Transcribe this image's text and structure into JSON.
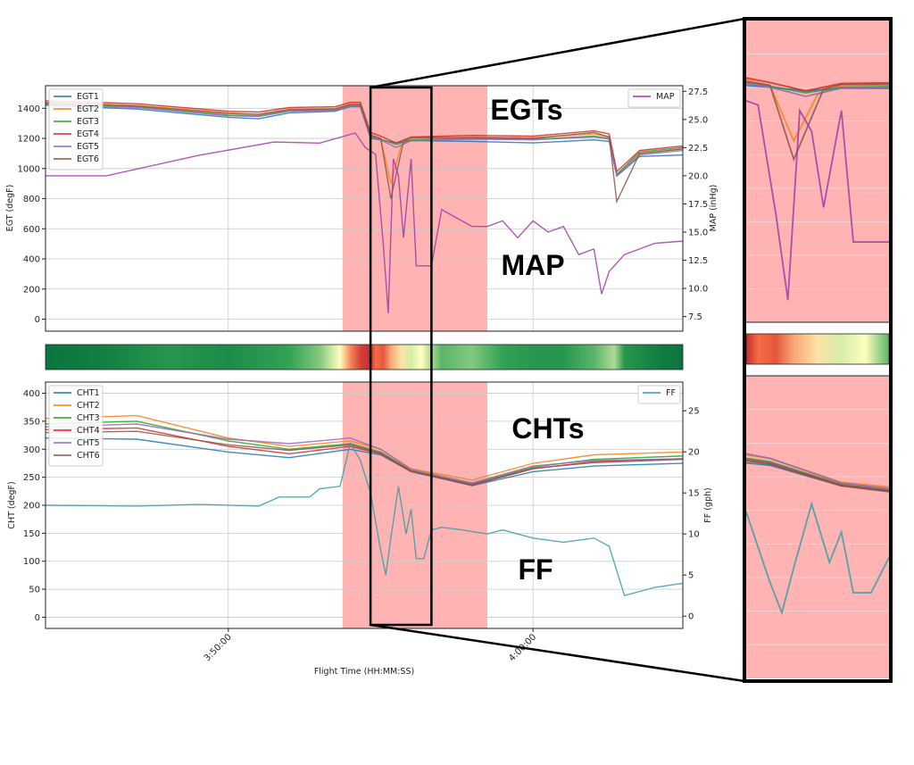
{
  "chart_data": [
    {
      "type": "line",
      "panel": "top",
      "xlabel": "",
      "ylabel": "EGT (degF)",
      "y2label": "MAP (inHg)",
      "ylim": [
        -80,
        1550
      ],
      "y2lim": [
        6.2,
        28.0
      ],
      "yticks": [
        "0",
        "200",
        "400",
        "600",
        "800",
        "1000",
        "1200",
        "1400"
      ],
      "y2ticks": [
        "7.5",
        "10.0",
        "12.5",
        "15.0",
        "17.5",
        "20.0",
        "22.5",
        "25.0",
        "27.5"
      ],
      "xlim": [
        "3:44:00",
        "4:04:55"
      ],
      "annotations": [
        "EGTs",
        "MAP"
      ],
      "grid": true,
      "legend_left": "top-left",
      "legend_right": "top-right",
      "series": [
        {
          "name": "EGT1",
          "axis": "left",
          "color": "#1f77b4",
          "x": [
            "3:44:00",
            "3:47:00",
            "3:50:00",
            "3:51:00",
            "3:52:00",
            "3:53:30",
            "3:54:00",
            "3:54:20",
            "3:54:40",
            "3:55:00",
            "3:55:30",
            "3:56:00",
            "3:58:00",
            "4:00:00",
            "4:02:00",
            "4:02:30",
            "4:02:45",
            "4:03:30",
            "4:04:55"
          ],
          "values": [
            1420,
            1395,
            1340,
            1330,
            1370,
            1380,
            1410,
            1410,
            1200,
            1190,
            1170,
            1185,
            1180,
            1170,
            1190,
            1180,
            950,
            1080,
            1090
          ]
        },
        {
          "name": "EGT2",
          "axis": "left",
          "color": "#ff7f0e",
          "x": [
            "3:44:00",
            "3:47:00",
            "3:50:00",
            "3:51:00",
            "3:52:00",
            "3:53:30",
            "3:54:00",
            "3:54:20",
            "3:54:40",
            "3:55:00",
            "3:55:20",
            "3:55:40",
            "3:56:00",
            "3:58:00",
            "4:00:00",
            "4:02:00",
            "4:02:30",
            "4:02:45",
            "4:03:30",
            "4:04:55"
          ],
          "values": [
            1440,
            1420,
            1370,
            1360,
            1395,
            1400,
            1430,
            1430,
            1230,
            1200,
            900,
            1150,
            1200,
            1210,
            1205,
            1230,
            1210,
            960,
            1100,
            1130
          ]
        },
        {
          "name": "EGT3",
          "axis": "left",
          "color": "#2ca02c",
          "x": [
            "3:44:00",
            "3:47:00",
            "3:50:00",
            "3:51:00",
            "3:52:00",
            "3:53:30",
            "3:54:00",
            "3:54:20",
            "3:54:40",
            "3:55:00",
            "3:55:30",
            "3:56:00",
            "3:58:00",
            "4:00:00",
            "4:02:00",
            "4:02:30",
            "4:02:45",
            "4:03:30",
            "4:04:55"
          ],
          "values": [
            1430,
            1410,
            1355,
            1350,
            1385,
            1390,
            1420,
            1420,
            1215,
            1195,
            1160,
            1190,
            1200,
            1195,
            1215,
            1200,
            960,
            1110,
            1140
          ]
        },
        {
          "name": "EGT4",
          "axis": "left",
          "color": "#d62728",
          "x": [
            "3:44:00",
            "3:47:00",
            "3:50:00",
            "3:51:00",
            "3:52:00",
            "3:53:30",
            "3:54:00",
            "3:54:20",
            "3:54:40",
            "3:55:00",
            "3:55:30",
            "3:56:00",
            "3:58:00",
            "4:00:00",
            "4:02:00",
            "4:02:30",
            "4:02:45",
            "4:03:30",
            "4:04:55"
          ],
          "values": [
            1450,
            1430,
            1380,
            1375,
            1405,
            1410,
            1440,
            1440,
            1240,
            1215,
            1170,
            1210,
            1220,
            1215,
            1250,
            1230,
            980,
            1120,
            1150
          ]
        },
        {
          "name": "EGT5",
          "axis": "left",
          "color": "#9467bd",
          "x": [
            "3:44:00",
            "3:47:00",
            "3:50:00",
            "3:51:00",
            "3:52:00",
            "3:53:30",
            "3:54:00",
            "3:54:20",
            "3:54:40",
            "3:55:00",
            "3:55:30",
            "3:56:00",
            "3:58:00",
            "4:00:00",
            "4:02:00",
            "4:02:30",
            "4:02:45",
            "4:03:30",
            "4:04:55"
          ],
          "values": [
            1425,
            1405,
            1350,
            1345,
            1380,
            1385,
            1415,
            1415,
            1210,
            1190,
            1140,
            1185,
            1195,
            1190,
            1210,
            1195,
            950,
            1090,
            1120
          ]
        },
        {
          "name": "EGT6",
          "axis": "left",
          "color": "#8c564b",
          "x": [
            "3:44:00",
            "3:47:00",
            "3:50:00",
            "3:51:00",
            "3:52:00",
            "3:53:30",
            "3:54:00",
            "3:54:20",
            "3:54:40",
            "3:55:00",
            "3:55:20",
            "3:55:45",
            "3:56:00",
            "3:58:00",
            "4:00:00",
            "4:02:00",
            "4:02:30",
            "4:02:45",
            "4:03:30",
            "4:04:55"
          ],
          "values": [
            1435,
            1415,
            1365,
            1360,
            1390,
            1395,
            1425,
            1425,
            1220,
            1200,
            800,
            1180,
            1205,
            1205,
            1200,
            1240,
            1210,
            780,
            1100,
            1130
          ]
        },
        {
          "name": "MAP",
          "axis": "right",
          "color": "#a03ca8",
          "x": [
            "3:44:00",
            "3:46:00",
            "3:49:00",
            "3:51:30",
            "3:53:00",
            "3:54:10",
            "3:54:30",
            "3:54:50",
            "3:55:05",
            "3:55:15",
            "3:55:25",
            "3:55:35",
            "3:55:45",
            "3:56:00",
            "3:56:10",
            "3:56:40",
            "3:57:00",
            "3:57:20",
            "3:58:00",
            "3:58:30",
            "3:59:00",
            "3:59:30",
            "4:00:00",
            "4:00:30",
            "4:01:00",
            "4:01:30",
            "4:02:00",
            "4:02:15",
            "4:02:30",
            "4:03:00",
            "4:03:30",
            "4:04:00",
            "4:04:55"
          ],
          "values": [
            20.0,
            20.0,
            21.8,
            23.0,
            22.9,
            23.8,
            22.5,
            21.9,
            14.0,
            7.8,
            21.5,
            20.0,
            14.5,
            21.5,
            12.0,
            12.0,
            17.0,
            16.5,
            15.5,
            15.5,
            16.0,
            14.5,
            16.0,
            15.0,
            15.5,
            13.0,
            13.5,
            9.5,
            11.5,
            13.0,
            13.5,
            14.0,
            14.2
          ]
        }
      ]
    },
    {
      "type": "heatmap",
      "panel": "middle",
      "colormap": "RdYlGn_r",
      "xlim": [
        "3:44:00",
        "4:04:55"
      ],
      "x": [
        "3:44:00",
        "3:46:00",
        "3:48:00",
        "3:50:00",
        "3:52:00",
        "3:53:00",
        "3:53:40",
        "3:54:00",
        "3:54:20",
        "3:54:40",
        "3:54:50",
        "3:55:05",
        "3:55:20",
        "3:55:40",
        "3:56:00",
        "3:56:20",
        "3:57:00",
        "3:58:00",
        "3:59:00",
        "4:00:00",
        "4:01:00",
        "4:02:00",
        "4:02:40",
        "4:03:00",
        "4:04:00",
        "4:04:55"
      ],
      "values": [
        0.05,
        0.1,
        0.2,
        0.15,
        0.25,
        0.35,
        0.5,
        0.7,
        0.85,
        0.9,
        0.75,
        0.8,
        0.65,
        0.55,
        0.45,
        0.5,
        0.3,
        0.35,
        0.25,
        0.2,
        0.2,
        0.3,
        0.4,
        0.2,
        0.1,
        0.05
      ]
    },
    {
      "type": "line",
      "panel": "bottom",
      "xlabel": "Flight Time (HH:MM:SS)",
      "ylabel": "CHT (degF)",
      "y2label": "FF (gph)",
      "ylim": [
        -20,
        420
      ],
      "y2lim": [
        -1.5,
        28.5
      ],
      "yticks": [
        "0",
        "50",
        "100",
        "150",
        "200",
        "250",
        "300",
        "350",
        "400"
      ],
      "y2ticks": [
        "0",
        "5",
        "10",
        "15",
        "20",
        "25"
      ],
      "xlim": [
        "3:44:00",
        "4:04:55"
      ],
      "xticks": [
        "3:50:00",
        "4:00:00"
      ],
      "annotations": [
        "CHTs",
        "FF"
      ],
      "grid": true,
      "legend_left": "top-left",
      "legend_right": "top-right",
      "highlight_region": [
        "3:53:45",
        "3:58:30"
      ],
      "zoom_box": [
        "3:54:40",
        "3:56:40"
      ],
      "series": [
        {
          "name": "CHT1",
          "axis": "left",
          "color": "#1f77b4",
          "x": [
            "3:44:00",
            "3:47:00",
            "3:50:00",
            "3:52:00",
            "3:54:00",
            "3:55:00",
            "3:56:00",
            "3:58:00",
            "4:00:00",
            "4:02:00",
            "4:04:55"
          ],
          "values": [
            320,
            318,
            295,
            285,
            300,
            290,
            260,
            235,
            260,
            270,
            275
          ]
        },
        {
          "name": "CHT2",
          "axis": "left",
          "color": "#ff7f0e",
          "x": [
            "3:44:00",
            "3:47:00",
            "3:50:00",
            "3:52:00",
            "3:54:00",
            "3:55:00",
            "3:56:00",
            "3:58:00",
            "4:00:00",
            "4:02:00",
            "4:04:55"
          ],
          "values": [
            355,
            360,
            320,
            305,
            315,
            300,
            265,
            245,
            275,
            290,
            295
          ]
        },
        {
          "name": "CHT3",
          "axis": "left",
          "color": "#2ca02c",
          "x": [
            "3:44:00",
            "3:47:00",
            "3:50:00",
            "3:52:00",
            "3:54:00",
            "3:55:00",
            "3:56:00",
            "3:58:00",
            "4:00:00",
            "4:02:00",
            "4:04:55"
          ],
          "values": [
            345,
            350,
            315,
            300,
            310,
            295,
            262,
            238,
            268,
            282,
            288
          ]
        },
        {
          "name": "CHT4",
          "axis": "left",
          "color": "#d62728",
          "x": [
            "3:44:00",
            "3:47:00",
            "3:50:00",
            "3:52:00",
            "3:54:00",
            "3:55:00",
            "3:56:00",
            "3:58:00",
            "4:00:00",
            "4:02:00",
            "4:04:55"
          ],
          "values": [
            335,
            338,
            305,
            292,
            305,
            292,
            260,
            236,
            265,
            278,
            283
          ]
        },
        {
          "name": "CHT5",
          "axis": "left",
          "color": "#9467bd",
          "x": [
            "3:44:00",
            "3:47:00",
            "3:50:00",
            "3:52:00",
            "3:54:00",
            "3:55:00",
            "3:56:00",
            "3:58:00",
            "4:00:00",
            "4:02:00",
            "4:04:55"
          ],
          "values": [
            340,
            345,
            318,
            310,
            320,
            300,
            264,
            240,
            270,
            280,
            283
          ]
        },
        {
          "name": "CHT6",
          "axis": "left",
          "color": "#8c564b",
          "x": [
            "3:44:00",
            "3:47:00",
            "3:50:00",
            "3:52:00",
            "3:54:00",
            "3:55:00",
            "3:56:00",
            "3:58:00",
            "4:00:00",
            "4:02:00",
            "4:04:55"
          ],
          "values": [
            330,
            332,
            308,
            298,
            308,
            293,
            261,
            237,
            266,
            276,
            282
          ]
        },
        {
          "name": "FF",
          "axis": "right",
          "color": "#3a9ea5",
          "x": [
            "3:44:00",
            "3:47:00",
            "3:49:00",
            "3:51:00",
            "3:51:40",
            "3:52:40",
            "3:53:00",
            "3:53:40",
            "3:54:00",
            "3:54:20",
            "3:54:40",
            "3:55:00",
            "3:55:10",
            "3:55:20",
            "3:55:35",
            "3:55:50",
            "3:56:00",
            "3:56:10",
            "3:56:25",
            "3:56:40",
            "3:57:00",
            "3:57:40",
            "3:58:30",
            "3:59:00",
            "4:00:00",
            "4:01:00",
            "4:02:00",
            "4:02:30",
            "4:03:00",
            "4:04:00",
            "4:04:55"
          ],
          "values": [
            13.5,
            13.4,
            13.6,
            13.4,
            14.5,
            14.5,
            15.5,
            15.8,
            21.0,
            19.0,
            15.0,
            8.0,
            5.0,
            9.5,
            15.8,
            10.0,
            13.0,
            7.0,
            7.0,
            10.5,
            10.8,
            10.5,
            10.0,
            10.5,
            9.5,
            9.0,
            9.5,
            8.5,
            2.5,
            3.5,
            4.0
          ]
        }
      ]
    }
  ]
}
